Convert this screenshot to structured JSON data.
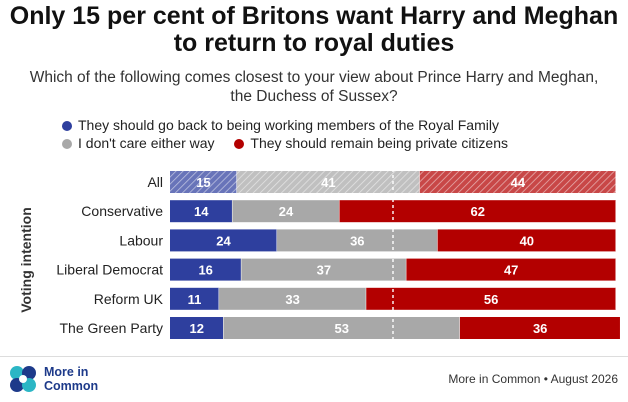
{
  "title": "Only 15 per cent of Britons want Harry and Meghan to return to royal duties",
  "subtitle": "Which of the following comes closest to your view about Prince Harry and Meghan, the Duchess of Sussex?",
  "logo": {
    "name": "More in Common"
  },
  "source": "More in Common • August 2026",
  "colors": {
    "back": "#2e3f9e",
    "dont_care": "#a8a8a8",
    "private": "#b30000"
  },
  "chart_data": {
    "type": "bar",
    "orientation": "horizontal",
    "stacked": true,
    "ylabel": "Voting intention",
    "categories": [
      "All",
      "Conservative",
      "Labour",
      "Liberal Democrat",
      "Reform UK",
      "The Green Party"
    ],
    "highlighted_category": "All",
    "series": [
      {
        "name": "They should go back to being working members of the Royal Family",
        "values": [
          15,
          14,
          24,
          16,
          11,
          12
        ]
      },
      {
        "name": "I don't care either way",
        "values": [
          41,
          24,
          36,
          37,
          33,
          53
        ]
      },
      {
        "name": "They should remain being private citizens",
        "values": [
          44,
          62,
          40,
          47,
          56,
          36
        ]
      }
    ],
    "xlim": [
      0,
      100
    ],
    "reference_line": 50,
    "legend_position": "top"
  }
}
